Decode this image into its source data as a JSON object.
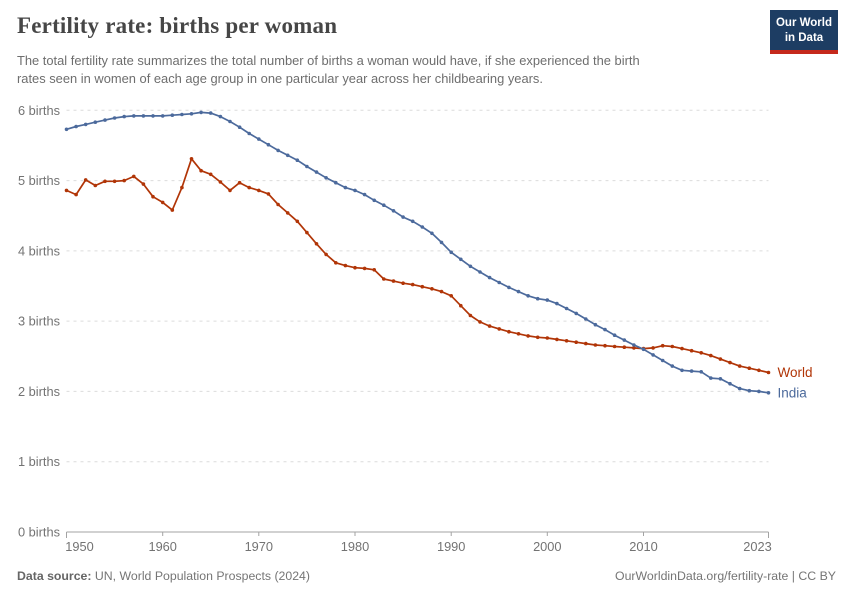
{
  "header": {
    "title": "Fertility rate: births per woman",
    "subtitle": [
      "The total fertility rate summarizes the total number of births a woman would have, if she experienced the birth",
      "rates seen in women of each age group in one particular year across her childbearing years."
    ],
    "logo": {
      "line1": "Our World",
      "line2": "in Data"
    }
  },
  "footer": {
    "source_label": "Data source:",
    "source_value": " UN, World Population Prospects (2024)",
    "credit": "OurWorldinData.org/fertility-rate | CC BY"
  },
  "colors": {
    "world": "#B13507",
    "india": "#4C6A9C",
    "gridline": "#dcdcdc",
    "axis": "#a3a3a3",
    "tick_label": "#737373",
    "logo_bg": "#1d3d63",
    "logo_accent": "#c5291c"
  },
  "chart_data": {
    "type": "line",
    "title": "Fertility rate: births per woman",
    "xlabel": "",
    "ylabel": "births",
    "y_unit": "births",
    "grid": "horizontal-dashed",
    "legend_position": "end-of-line",
    "xlim": [
      1950,
      2023
    ],
    "ylim": [
      0,
      6
    ],
    "xticks": [
      1950,
      1960,
      1970,
      1980,
      1990,
      2000,
      2010,
      2023
    ],
    "yticks": [
      0,
      1,
      2,
      3,
      4,
      5,
      6
    ],
    "years": [
      1950,
      1951,
      1952,
      1953,
      1954,
      1955,
      1956,
      1957,
      1958,
      1959,
      1960,
      1961,
      1962,
      1963,
      1964,
      1965,
      1966,
      1967,
      1968,
      1969,
      1970,
      1971,
      1972,
      1973,
      1974,
      1975,
      1976,
      1977,
      1978,
      1979,
      1980,
      1981,
      1982,
      1983,
      1984,
      1985,
      1986,
      1987,
      1988,
      1989,
      1990,
      1991,
      1992,
      1993,
      1994,
      1995,
      1996,
      1997,
      1998,
      1999,
      2000,
      2001,
      2002,
      2003,
      2004,
      2005,
      2006,
      2007,
      2008,
      2009,
      2010,
      2011,
      2012,
      2013,
      2014,
      2015,
      2016,
      2017,
      2018,
      2019,
      2020,
      2021,
      2022,
      2023
    ],
    "series": [
      {
        "name": "World",
        "color": "#B13507",
        "values": [
          4.86,
          4.8,
          5.01,
          4.93,
          4.99,
          4.99,
          5.0,
          5.06,
          4.95,
          4.77,
          4.69,
          4.58,
          4.9,
          5.31,
          5.14,
          5.09,
          4.98,
          4.86,
          4.97,
          4.9,
          4.86,
          4.81,
          4.66,
          4.54,
          4.42,
          4.26,
          4.1,
          3.95,
          3.83,
          3.79,
          3.76,
          3.75,
          3.73,
          3.6,
          3.57,
          3.54,
          3.52,
          3.49,
          3.46,
          3.42,
          3.36,
          3.22,
          3.08,
          2.99,
          2.93,
          2.89,
          2.85,
          2.82,
          2.79,
          2.77,
          2.76,
          2.74,
          2.72,
          2.7,
          2.68,
          2.66,
          2.65,
          2.64,
          2.63,
          2.62,
          2.61,
          2.62,
          2.65,
          2.64,
          2.61,
          2.58,
          2.55,
          2.51,
          2.46,
          2.41,
          2.36,
          2.33,
          2.3,
          2.27
        ]
      },
      {
        "name": "India",
        "color": "#4C6A9C",
        "values": [
          5.73,
          5.77,
          5.8,
          5.83,
          5.86,
          5.89,
          5.91,
          5.92,
          5.92,
          5.92,
          5.92,
          5.93,
          5.94,
          5.95,
          5.97,
          5.96,
          5.91,
          5.84,
          5.76,
          5.67,
          5.59,
          5.51,
          5.43,
          5.36,
          5.29,
          5.2,
          5.12,
          5.04,
          4.97,
          4.9,
          4.86,
          4.8,
          4.72,
          4.65,
          4.57,
          4.48,
          4.42,
          4.34,
          4.25,
          4.12,
          3.98,
          3.88,
          3.78,
          3.7,
          3.62,
          3.55,
          3.48,
          3.42,
          3.36,
          3.32,
          3.3,
          3.25,
          3.18,
          3.11,
          3.03,
          2.95,
          2.88,
          2.8,
          2.73,
          2.66,
          2.6,
          2.52,
          2.44,
          2.36,
          2.3,
          2.29,
          2.28,
          2.19,
          2.18,
          2.11,
          2.04,
          2.01,
          2.0,
          1.98
        ]
      }
    ]
  }
}
